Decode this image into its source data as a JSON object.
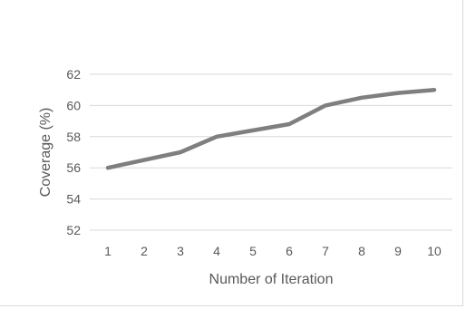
{
  "chart_data": {
    "type": "line",
    "title": "",
    "xlabel": "Number of Iteration",
    "ylabel": "Coverage (%)",
    "x": [
      1,
      2,
      3,
      4,
      5,
      6,
      7,
      8,
      9,
      10
    ],
    "series": [
      {
        "values": [
          56.0,
          56.5,
          57.0,
          58.0,
          58.4,
          58.8,
          60.0,
          60.5,
          60.8,
          61.0
        ],
        "color": "#7f7f7f"
      }
    ],
    "ylim": [
      52,
      62
    ],
    "yticks": [
      52,
      54,
      56,
      58,
      60,
      62
    ],
    "xticks": [
      "1",
      "2",
      "3",
      "4",
      "5",
      "6",
      "7",
      "8",
      "9",
      "10"
    ],
    "grid": "horizontal",
    "legend": "none",
    "gridline_color": "#d9d9d9",
    "axis_color": "#d9d9d9"
  }
}
